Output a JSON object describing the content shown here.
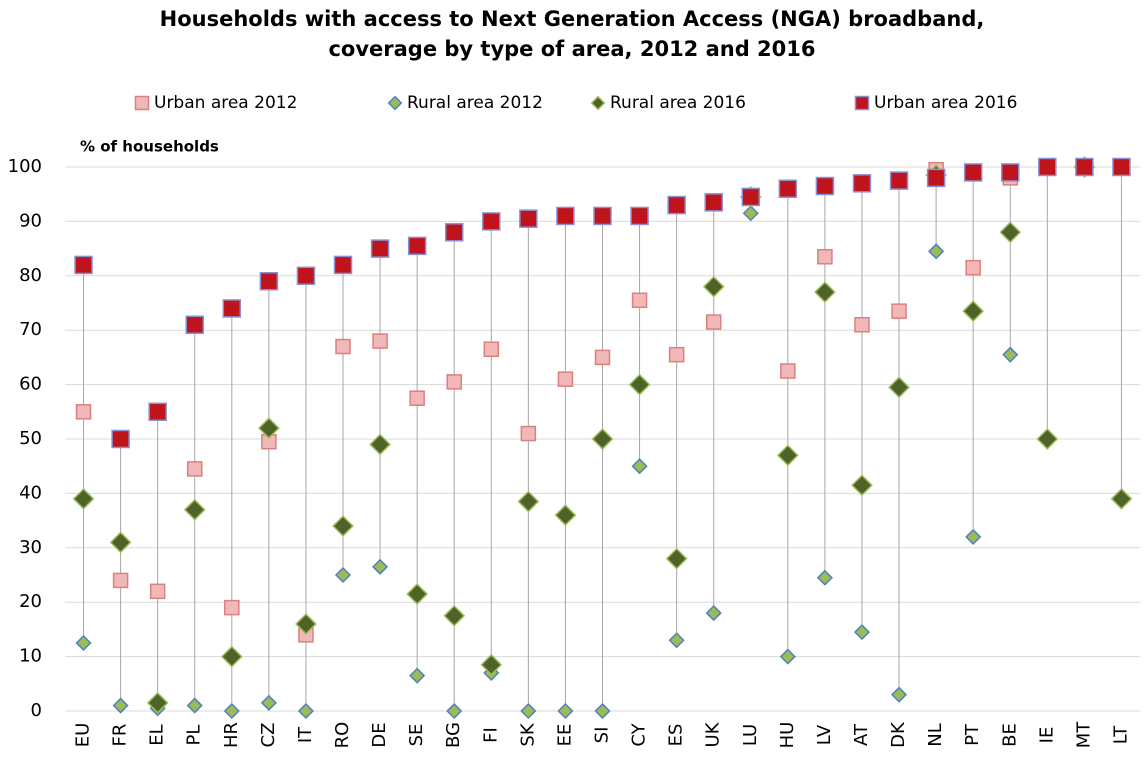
{
  "chart_data": {
    "type": "dot",
    "title": "Households with access to Next Generation Access (NGA) broadband,",
    "subtitle": "coverage by type of area, 2012 and 2016",
    "y_label": "% of households",
    "categories": [
      "EU",
      "FR",
      "EL",
      "PL",
      "HR",
      "CZ",
      "IT",
      "RO",
      "DE",
      "SE",
      "BG",
      "FI",
      "SK",
      "EE",
      "SI",
      "CY",
      "ES",
      "UK",
      "LU",
      "HU",
      "LV",
      "AT",
      "DK",
      "NL",
      "PT",
      "BE",
      "IE",
      "MT",
      "LT"
    ],
    "series": [
      {
        "name": "Urban area 2012",
        "color": "#f2b8b8",
        "edgecolor": "#d98080",
        "marker": "square",
        "size": 14,
        "values": [
          55,
          24,
          22,
          44.5,
          19,
          49.5,
          14,
          67,
          68,
          57.5,
          60.5,
          66.5,
          51,
          61,
          65,
          75.5,
          65.5,
          71.5,
          94.5,
          62.5,
          83.5,
          71,
          73.5,
          99.5,
          81.5,
          98,
          100,
          100,
          null
        ]
      },
      {
        "name": "Rural area 2012",
        "color": "#9bbb59",
        "edgecolor": "#4f81bd",
        "marker": "diamond",
        "size": 10,
        "values": [
          12.5,
          1,
          0.5,
          1,
          0,
          1.5,
          0,
          25,
          26.5,
          6.5,
          0,
          7,
          0,
          0,
          0,
          45,
          13,
          18,
          91.5,
          10,
          24.5,
          14.5,
          3,
          84.5,
          32,
          65.5,
          null,
          100,
          null
        ]
      },
      {
        "name": "Rural area 2016",
        "color": "#4f6228",
        "edgecolor": "#9bbb59",
        "marker": "diamond",
        "size": 14,
        "values": [
          39,
          31,
          1.5,
          37,
          10,
          52,
          16,
          34,
          49,
          21.5,
          17.5,
          8.5,
          38.5,
          36,
          50,
          60,
          28,
          78,
          94.5,
          47,
          77,
          41.5,
          59.5,
          98.5,
          73.5,
          88,
          50,
          100,
          39
        ]
      },
      {
        "name": "Urban area 2016",
        "color": "#c0141c",
        "edgecolor": "#8a8fd0",
        "marker": "square",
        "size": 17,
        "values": [
          82,
          50,
          55,
          71,
          74,
          79,
          80,
          82,
          85,
          85.5,
          88,
          90,
          90.5,
          91,
          91,
          91,
          93,
          93.5,
          94.5,
          96,
          96.5,
          97,
          97.5,
          98,
          99,
          99,
          100,
          100,
          100
        ]
      }
    ],
    "ylim": [
      0,
      100
    ],
    "yticks": [
      0,
      10,
      20,
      30,
      40,
      50,
      60,
      70,
      80,
      90,
      100
    ],
    "grid": true
  }
}
